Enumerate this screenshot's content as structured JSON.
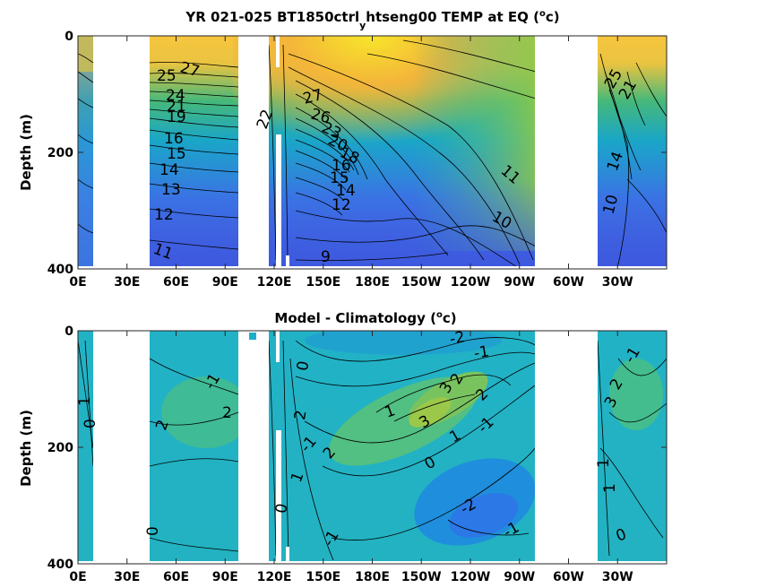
{
  "chart_data": [
    {
      "type": "heatmap",
      "title": "YR 021-025 BT1850ctrl_yhtseng00 TEMP at EQ (°c)",
      "title_parts": {
        "pre": "YR 021-025 BT1850ctrl",
        "sub": "y",
        "mid": "htseng00 TEMP at EQ (",
        "sup": "o",
        "post": "c)"
      },
      "ylabel": "Depth (m)",
      "xlabel": "",
      "x_ticks": [
        "0E",
        "30E",
        "60E",
        "90E",
        "120E",
        "150E",
        "180E",
        "150W",
        "120W",
        "90W",
        "60W",
        "30W"
      ],
      "y_ticks": [
        "0",
        "200",
        "400"
      ],
      "xlim": [
        0,
        360
      ],
      "ylim": [
        0,
        400
      ],
      "y_reversed": true,
      "colormap": "parula",
      "contour_labels": [
        "27",
        "26",
        "25",
        "24",
        "23",
        "22",
        "21",
        "20",
        "19",
        "18",
        "17",
        "16",
        "15",
        "14",
        "13",
        "12",
        "11",
        "10",
        "9"
      ]
    },
    {
      "type": "heatmap",
      "title": "Model - Climatology (°c)",
      "title_parts": {
        "pre": "Model - Climatology (",
        "sup": "o",
        "post": "c)"
      },
      "ylabel": "Depth (m)",
      "xlabel": "",
      "x_ticks": [
        "0E",
        "30E",
        "60E",
        "90E",
        "120E",
        "150E",
        "180E",
        "150W",
        "120W",
        "90W",
        "60W",
        "30W"
      ],
      "y_ticks": [
        "0",
        "200",
        "400"
      ],
      "xlim": [
        0,
        360
      ],
      "ylim": [
        0,
        400
      ],
      "y_reversed": true,
      "colormap": "parula",
      "contour_labels": [
        "3",
        "2",
        "1",
        "0",
        "-1",
        "-2"
      ]
    }
  ],
  "colors": {
    "land": "#ffffff",
    "axis": "#000000",
    "contour": "#000000"
  }
}
